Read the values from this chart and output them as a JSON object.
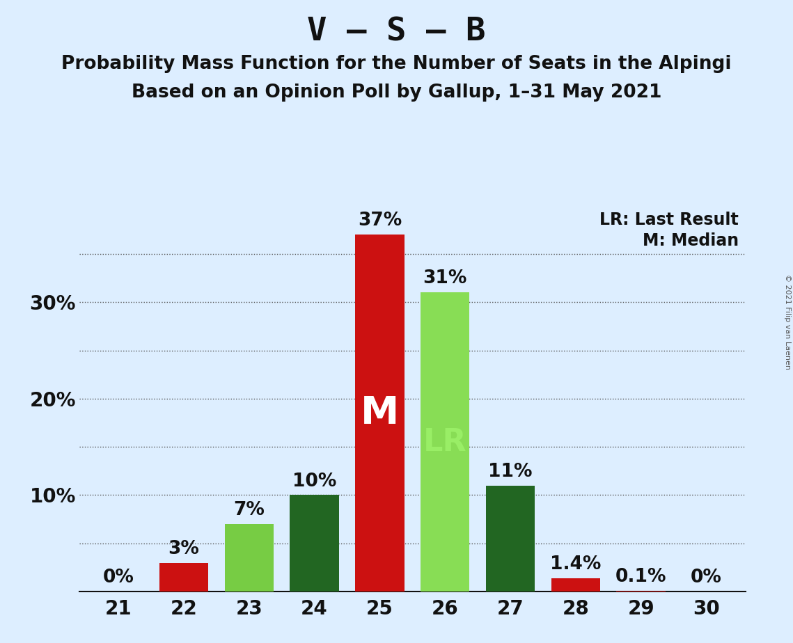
{
  "title": "V – S – B",
  "subtitle1": "Probability Mass Function for the Number of Seats in the Alpingi",
  "subtitle2": "Based on an Opinion Poll by Gallup, 1–31 May 2021",
  "copyright": "© 2021 Filip van Laenen",
  "categories": [
    21,
    22,
    23,
    24,
    25,
    26,
    27,
    28,
    29,
    30
  ],
  "values": [
    0.0,
    3.0,
    7.0,
    10.0,
    37.0,
    31.0,
    11.0,
    1.4,
    0.1,
    0.0
  ],
  "bar_colors": [
    "#cc1111",
    "#cc1111",
    "#77cc44",
    "#226622",
    "#cc1111",
    "#88dd55",
    "#226622",
    "#cc1111",
    "#cc1111",
    "#cc1111"
  ],
  "bar_labels": [
    "0%",
    "3%",
    "7%",
    "10%",
    "37%",
    "31%",
    "11%",
    "1.4%",
    "0.1%",
    "0%"
  ],
  "median_bar_idx": 4,
  "lr_bar_idx": 5,
  "median_label": "M",
  "lr_label": "LR",
  "legend_lr": "LR: Last Result",
  "legend_m": "M: Median",
  "background_color": "#ddeeff",
  "ylim": [
    0,
    40
  ],
  "ytick_labels": [
    "",
    "10%",
    "20%",
    "30%",
    ""
  ],
  "ytick_values": [
    0,
    10,
    20,
    30,
    40
  ],
  "grid_yticks": [
    5,
    10,
    15,
    20,
    25,
    30,
    35
  ],
  "grid_color": "#555555",
  "title_fontsize": 34,
  "subtitle_fontsize": 19,
  "bar_label_fontsize": 19,
  "axis_tick_fontsize": 20,
  "inline_label_color_m": "#ffffff",
  "inline_label_color_lr": "#99ee66"
}
